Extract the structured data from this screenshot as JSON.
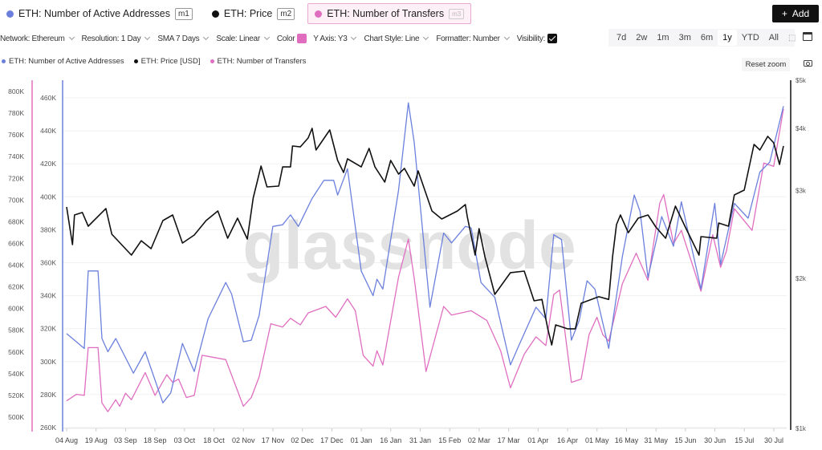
{
  "metrics": [
    {
      "label": "ETH: Number of Active Addresses",
      "badge": "m1",
      "color": "#6b80dc"
    },
    {
      "label": "ETH: Price",
      "badge": "m2",
      "color": "#111111"
    },
    {
      "label": "ETH: Number of Transfers",
      "badge": "m3",
      "color": "#e06ec0"
    }
  ],
  "add_button": {
    "icon": "plus-icon",
    "label": "Add"
  },
  "controls": {
    "network": "Network: Ethereum",
    "resolution": "Resolution: 1 Day",
    "sma": "SMA 7 Days",
    "scale": "Scale: Linear",
    "color": "Color",
    "y_axis": "Y Axis: Y3",
    "chart_style": "Chart Style: Line",
    "formatter": "Formatter: Number",
    "visibility": "Visibility:"
  },
  "ranges": [
    "7d",
    "2w",
    "1m",
    "3m",
    "6m",
    "1y",
    "YTD",
    "All"
  ],
  "active_range": "1y",
  "legend": [
    "ETH: Number of Active Addresses",
    "ETH: Price [USD]",
    "ETH: Number of Transfers"
  ],
  "reset_zoom": "Reset zoom",
  "watermark": "glassnode",
  "chart_data": {
    "type": "line",
    "x_unit": "days since 04 Aug",
    "x_ticks": [
      "04 Aug",
      "19 Aug",
      "03 Sep",
      "18 Sep",
      "03 Oct",
      "18 Oct",
      "02 Nov",
      "17 Nov",
      "02 Dec",
      "17 Dec",
      "01 Jan",
      "16 Jan",
      "31 Jan",
      "15 Feb",
      "02 Mar",
      "17 Mar",
      "01 Apr",
      "16 Apr",
      "01 May",
      "16 May",
      "31 May",
      "15 Jun",
      "30 Jun",
      "15 Jul",
      "30 Jul"
    ],
    "axes": {
      "transfers": {
        "ticks": [
          "500K",
          "520K",
          "540K",
          "560K",
          "580K",
          "600K",
          "620K",
          "640K",
          "660K",
          "680K",
          "700K",
          "720K",
          "740K",
          "760K",
          "780K",
          "800K"
        ],
        "range": [
          500000,
          800000
        ],
        "scale": "linear"
      },
      "active": {
        "ticks": [
          "260K",
          "280K",
          "300K",
          "320K",
          "340K",
          "360K",
          "380K",
          "400K",
          "420K",
          "440K",
          "460K"
        ],
        "range": [
          260000,
          460000
        ],
        "scale": "linear"
      },
      "price": {
        "ticks": [
          "$1k",
          "$2k",
          "$3k",
          "$4k",
          "$5k"
        ],
        "range": [
          1000,
          5000
        ],
        "scale": "log"
      }
    },
    "series": [
      {
        "name": "ETH: Number of Active Addresses",
        "axis": "active",
        "color": "#6b80dc",
        "points": [
          [
            0,
            317
          ],
          [
            9,
            308
          ],
          [
            11,
            355
          ],
          [
            16,
            355
          ],
          [
            18,
            314
          ],
          [
            21,
            306
          ],
          [
            25,
            314
          ],
          [
            34,
            293
          ],
          [
            40,
            306
          ],
          [
            49,
            275
          ],
          [
            53,
            281
          ],
          [
            59,
            311
          ],
          [
            65,
            294
          ],
          [
            72,
            326
          ],
          [
            81,
            348
          ],
          [
            84,
            341
          ],
          [
            90,
            312
          ],
          [
            94,
            313
          ],
          [
            98,
            328
          ],
          [
            105,
            382
          ],
          [
            110,
            383
          ],
          [
            114,
            389
          ],
          [
            118,
            382
          ],
          [
            125,
            399
          ],
          [
            131,
            410
          ],
          [
            136,
            410
          ],
          [
            138,
            401
          ],
          [
            143,
            417
          ],
          [
            150,
            355
          ],
          [
            156,
            340
          ],
          [
            158,
            350
          ],
          [
            161,
            344
          ],
          [
            169,
            404
          ],
          [
            174,
            457
          ],
          [
            177,
            433
          ],
          [
            185,
            333
          ],
          [
            192,
            378
          ],
          [
            196,
            372
          ],
          [
            203,
            382
          ],
          [
            206,
            381
          ],
          [
            211,
            348
          ],
          [
            218,
            339
          ],
          [
            226,
            298
          ],
          [
            230,
            309
          ],
          [
            239,
            333
          ],
          [
            244,
            326
          ],
          [
            248,
            377
          ],
          [
            252,
            374
          ],
          [
            257,
            313
          ],
          [
            261,
            325
          ],
          [
            265,
            349
          ],
          [
            269,
            344
          ],
          [
            276,
            308
          ],
          [
            283,
            364
          ],
          [
            289,
            401
          ],
          [
            292,
            391
          ],
          [
            296,
            351
          ],
          [
            303,
            388
          ],
          [
            309,
            370
          ],
          [
            313,
            397
          ],
          [
            323,
            344
          ],
          [
            330,
            396
          ],
          [
            333,
            359
          ],
          [
            340,
            396
          ],
          [
            347,
            387
          ],
          [
            353,
            415
          ],
          [
            358,
            421
          ],
          [
            365,
            455
          ]
        ]
      },
      {
        "name": "ETH: Price [USD]",
        "axis": "price",
        "color": "#111111",
        "points": [
          [
            0,
            2782
          ],
          [
            3,
            2337
          ],
          [
            4,
            2680
          ],
          [
            8,
            2711
          ],
          [
            11,
            2545
          ],
          [
            20,
            2761
          ],
          [
            23,
            2452
          ],
          [
            33,
            2227
          ],
          [
            38,
            2380
          ],
          [
            43,
            2294
          ],
          [
            49,
            2612
          ],
          [
            54,
            2680
          ],
          [
            59,
            2354
          ],
          [
            65,
            2443
          ],
          [
            71,
            2612
          ],
          [
            77,
            2731
          ],
          [
            82,
            2407
          ],
          [
            87,
            2641
          ],
          [
            92,
            2398
          ],
          [
            95,
            2897
          ],
          [
            99,
            3360
          ],
          [
            102,
            3052
          ],
          [
            108,
            3063
          ],
          [
            110,
            3347
          ],
          [
            114,
            3347
          ],
          [
            115,
            3687
          ],
          [
            119,
            3672
          ],
          [
            123,
            3826
          ],
          [
            125,
            4000
          ],
          [
            127,
            3619
          ],
          [
            134,
            3970
          ],
          [
            138,
            3449
          ],
          [
            141,
            3262
          ],
          [
            143,
            3474
          ],
          [
            150,
            3347
          ],
          [
            154,
            3646
          ],
          [
            157,
            3347
          ],
          [
            162,
            3120
          ],
          [
            165,
            3449
          ],
          [
            169,
            3238
          ],
          [
            172,
            3324
          ],
          [
            177,
            3063
          ],
          [
            179,
            3287
          ],
          [
            186,
            2731
          ],
          [
            191,
            2631
          ],
          [
            199,
            2731
          ],
          [
            203,
            2813
          ],
          [
            204,
            2661
          ],
          [
            208,
            2227
          ],
          [
            210,
            2517
          ],
          [
            213,
            2210
          ],
          [
            218,
            1857
          ],
          [
            226,
            2053
          ],
          [
            233,
            2068
          ],
          [
            238,
            1803
          ],
          [
            242,
            1814
          ],
          [
            245,
            1584
          ],
          [
            247,
            1470
          ],
          [
            249,
            1613
          ],
          [
            255,
            1584
          ],
          [
            259,
            1584
          ],
          [
            262,
            1783
          ],
          [
            271,
            1837
          ],
          [
            276,
            1814
          ],
          [
            278,
            2210
          ],
          [
            280,
            2564
          ],
          [
            282,
            2680
          ],
          [
            286,
            2470
          ],
          [
            291,
            2641
          ],
          [
            296,
            2680
          ],
          [
            300,
            2535
          ],
          [
            305,
            2407
          ],
          [
            310,
            2792
          ],
          [
            315,
            2535
          ],
          [
            322,
            2227
          ],
          [
            323,
            2425
          ],
          [
            331,
            2407
          ],
          [
            332,
            2583
          ],
          [
            337,
            2545
          ],
          [
            340,
            2941
          ],
          [
            345,
            3007
          ],
          [
            350,
            3714
          ],
          [
            353,
            3619
          ],
          [
            357,
            3855
          ],
          [
            360,
            3742
          ],
          [
            363,
            3385
          ],
          [
            365,
            3687
          ]
        ]
      },
      {
        "name": "ETH: Number of Transfers",
        "axis": "transfers",
        "color": "#e06ec0",
        "points": [
          [
            0,
            515
          ],
          [
            5,
            521
          ],
          [
            9,
            520
          ],
          [
            11,
            564
          ],
          [
            16,
            564
          ],
          [
            18,
            513
          ],
          [
            21,
            505
          ],
          [
            25,
            516
          ],
          [
            27,
            510
          ],
          [
            30,
            522
          ],
          [
            33,
            516
          ],
          [
            40,
            541
          ],
          [
            45,
            520
          ],
          [
            51,
            539
          ],
          [
            54,
            532
          ],
          [
            57,
            535
          ],
          [
            61,
            518
          ],
          [
            65,
            520
          ],
          [
            69,
            557
          ],
          [
            81,
            553
          ],
          [
            90,
            510
          ],
          [
            94,
            518
          ],
          [
            98,
            537
          ],
          [
            104,
            586
          ],
          [
            110,
            583
          ],
          [
            114,
            591
          ],
          [
            119,
            585
          ],
          [
            123,
            596
          ],
          [
            132,
            602
          ],
          [
            137,
            592
          ],
          [
            143,
            609
          ],
          [
            147,
            598
          ],
          [
            151,
            557
          ],
          [
            156,
            547
          ],
          [
            158,
            561
          ],
          [
            161,
            548
          ],
          [
            169,
            629
          ],
          [
            174,
            664
          ],
          [
            177,
            628
          ],
          [
            183,
            542
          ],
          [
            192,
            602
          ],
          [
            196,
            594
          ],
          [
            206,
            598
          ],
          [
            214,
            589
          ],
          [
            221,
            561
          ],
          [
            226,
            527
          ],
          [
            233,
            558
          ],
          [
            239,
            574
          ],
          [
            244,
            566
          ],
          [
            248,
            613
          ],
          [
            251,
            617
          ],
          [
            257,
            532
          ],
          [
            262,
            535
          ],
          [
            266,
            576
          ],
          [
            270,
            592
          ],
          [
            273,
            576
          ],
          [
            276,
            570
          ],
          [
            283,
            623
          ],
          [
            290,
            651
          ],
          [
            296,
            626
          ],
          [
            302,
            697
          ],
          [
            304,
            705
          ],
          [
            309,
            660
          ],
          [
            313,
            672
          ],
          [
            323,
            616
          ],
          [
            329,
            668
          ],
          [
            333,
            638
          ],
          [
            336,
            653
          ],
          [
            340,
            692
          ],
          [
            349,
            672
          ],
          [
            355,
            734
          ],
          [
            360,
            731
          ],
          [
            365,
            784
          ]
        ]
      }
    ],
    "value_units": {
      "active": "thousands",
      "transfers": "thousands",
      "price": "USD"
    },
    "grid": true,
    "legend_position": "top-left"
  }
}
